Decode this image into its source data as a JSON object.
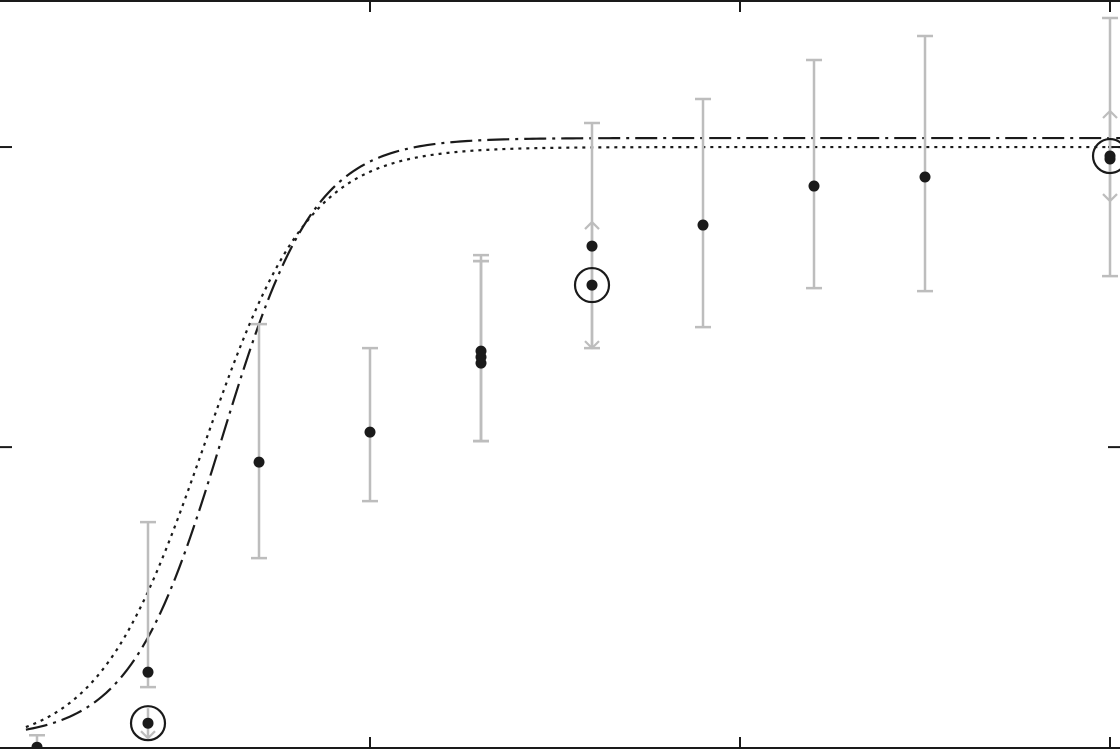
{
  "chart_data": {
    "type": "scatter",
    "title": "",
    "xlabel": "",
    "ylabel": "",
    "xlim": [
      0,
      3.027
    ],
    "ylim": [
      -0.006,
      2.49
    ],
    "xticks": [
      1,
      2,
      3
    ],
    "yticks": [
      1,
      2
    ],
    "grid": false,
    "legend": "none",
    "colors": {
      "points": "#1a1a1a",
      "error_bars": "#bdbdbd",
      "curves": "#1a1a1a",
      "frame": "#1a1a1a"
    },
    "series": [
      {
        "values": [
          {
            "x": 0.1,
            "y": 0.0,
            "err_low": 0.0,
            "err_high": 0.04
          },
          {
            "x": 0.4,
            "y": 0.25,
            "err_low": 0.05,
            "err_high": 0.5
          },
          {
            "x": 0.4,
            "y": 0.08,
            "circled": true,
            "err_low": 0.05,
            "err_high": 0.05,
            "arrow": "down"
          },
          {
            "x": 0.7,
            "y": 0.95,
            "err_low": 0.32,
            "err_high": 0.46
          },
          {
            "x": 1.0,
            "y": 1.05,
            "err_low": 0.23,
            "err_high": 0.28
          },
          {
            "x": 1.3,
            "y": 1.28,
            "err_low": 0.26,
            "err_high": 0.34
          },
          {
            "x": 1.3,
            "y": 1.3,
            "err_low": 0.28,
            "err_high": 0.32
          },
          {
            "x": 1.3,
            "y": 1.32,
            "err_low": 0.3,
            "err_high": 0.32
          },
          {
            "x": 1.6,
            "y": 1.54,
            "circled": true,
            "err_low": 0.21,
            "err_high": 0.21,
            "arrow": "both"
          },
          {
            "x": 1.6,
            "y": 1.67,
            "err_low": 0.34,
            "err_high": 0.41
          },
          {
            "x": 1.9,
            "y": 1.74,
            "err_low": 0.34,
            "err_high": 0.42
          },
          {
            "x": 2.2,
            "y": 1.87,
            "err_low": 0.34,
            "err_high": 0.42
          },
          {
            "x": 2.5,
            "y": 1.9,
            "err_low": 0.38,
            "err_high": 0.47
          },
          {
            "x": 3.0,
            "y": 1.97,
            "circled": true,
            "err_low": 0.15,
            "err_high": 0.15,
            "arrow": "both"
          },
          {
            "x": 3.0,
            "y": 1.96,
            "err_low": 0.39,
            "err_high": 0.47
          }
        ]
      }
    ],
    "curves": [
      {
        "style": "dashed-dotted",
        "x0": 0.6,
        "k": 8.0,
        "amplitude": 2.0,
        "baseline": 0.03
      },
      {
        "style": "dotted",
        "x0": 0.55,
        "k": 7.0,
        "amplitude": 2.0,
        "baseline": 0.0
      }
    ]
  }
}
